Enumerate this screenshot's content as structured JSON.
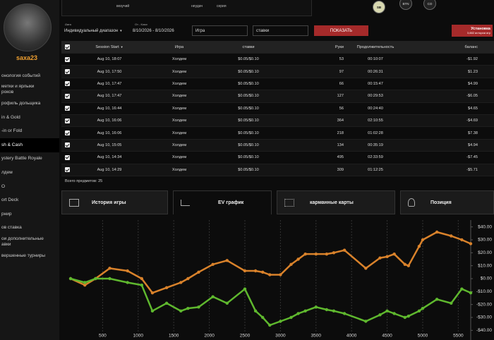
{
  "sidebar": {
    "username": "saxa23",
    "menu": [
      "онология событий",
      "метки и ярлыки\nроков",
      "рофиль дольщика",
      "in & Gold",
      "-in or Fold",
      "sh & Cash",
      "ystery Battle Royale",
      "лдем",
      "O",
      "ort Deck",
      "рнир",
      "ов ставка",
      "ои дополнительные\nавки",
      "вершенные турниры"
    ]
  },
  "top": {
    "labels": [
      "везучий",
      "неудач",
      "серия"
    ],
    "positions": [
      "SB",
      "BTN",
      "CO"
    ]
  },
  "filters": {
    "date_label": "Дата",
    "range_select": "Индивидуальный диапазон",
    "from_to_label": "От - Кому",
    "date_range": "8/10/2026 - 8/10/2026",
    "game_select": "Игра",
    "stakes_select": "ставки",
    "show_button": "ПОКАЗАТЬ",
    "install_button": "Установка",
    "install_sub": "3,882 истории игр"
  },
  "table": {
    "headers": [
      "Session Start",
      "Игра",
      "ставки",
      "Руки",
      "Продолжительность",
      "баланс"
    ],
    "rows": [
      [
        "Aug 10, 18:07",
        "Холдем",
        "$0.05/$0.10",
        "53",
        "00:10:07",
        "-$1.92"
      ],
      [
        "Aug 10, 17:50",
        "Холдем",
        "$0.05/$0.10",
        "97",
        "00:26:31",
        "$1.23"
      ],
      [
        "Aug 10, 17:47",
        "Холдем",
        "$0.05/$0.10",
        "66",
        "00:15:47",
        "$4.99"
      ],
      [
        "Aug 10, 17:47",
        "Холдем",
        "$0.05/$0.10",
        "127",
        "00:29:53",
        "-$6.05"
      ],
      [
        "Aug 10, 16:44",
        "Холдем",
        "$0.05/$0.10",
        "56",
        "00:24:40",
        "$4.65"
      ],
      [
        "Aug 10, 16:06",
        "Холдем",
        "$0.05/$0.10",
        "364",
        "02:10:55",
        "-$4.69"
      ],
      [
        "Aug 10, 16:06",
        "Холдем",
        "$0.05/$0.10",
        "218",
        "01:02:28",
        "$7.38"
      ],
      [
        "Aug 10, 15:05",
        "Холдем",
        "$0.05/$0.10",
        "134",
        "00:35:19",
        "$4.94"
      ],
      [
        "Aug 10, 14:34",
        "Холдем",
        "$0.05/$0.10",
        "495",
        "02:33:59",
        "-$7.45"
      ],
      [
        "Aug 10, 14:29",
        "Холдем",
        "$0.05/$0.10",
        "309",
        "01:12:25",
        "-$5.71"
      ]
    ],
    "total": "Всего предметов: 25"
  },
  "tabs": [
    "История игры",
    "EV график",
    "карманные карты",
    "Позиция"
  ],
  "chart_data": {
    "type": "line",
    "x": [
      50,
      250,
      400,
      600,
      850,
      1050,
      1200,
      1400,
      1600,
      1700,
      1850,
      2050,
      2250,
      2500,
      2650,
      2750,
      2850,
      3000,
      3150,
      3250,
      3350,
      3500,
      3650,
      3750,
      3900,
      4200,
      4400,
      4500,
      4600,
      4750,
      4800,
      4950,
      5000,
      5200,
      5400,
      5550,
      5675
    ],
    "series": [
      {
        "color": "#d9822b",
        "values": [
          0,
          -5,
          0,
          8,
          6,
          0,
          -11,
          -7,
          -3,
          0,
          5,
          11,
          14,
          6,
          6,
          5,
          3,
          3,
          11,
          15,
          19,
          19,
          19,
          20,
          22,
          8,
          16,
          17,
          19,
          11,
          10,
          25,
          30,
          36,
          33,
          30,
          27
        ]
      },
      {
        "color": "#5fb82e",
        "values": [
          0,
          -3,
          0,
          0,
          -3,
          -5,
          -25,
          -19,
          -25,
          -23,
          -22,
          -14,
          -19,
          -8,
          -25,
          -30,
          -36,
          -33,
          -30,
          -27,
          -25,
          -22,
          -24,
          -25,
          -27,
          -33,
          -28,
          -25,
          -27,
          -30,
          -29,
          -25,
          -23,
          -16,
          -19,
          -8,
          -11
        ]
      }
    ],
    "xlim": [
      0,
      5675
    ],
    "ylim": [
      -42,
      42
    ],
    "xticks": [
      500,
      1000,
      1500,
      2000,
      2500,
      3000,
      3500,
      4000,
      4500,
      5000,
      5500
    ],
    "yticks": [
      {
        "value": 40,
        "label": "$40.00"
      },
      {
        "value": 30,
        "label": "$30.00"
      },
      {
        "value": 20,
        "label": "$20.00"
      },
      {
        "value": 10,
        "label": "$10.00"
      },
      {
        "value": 0,
        "label": "$0.00"
      },
      {
        "value": -10,
        "label": "-$10.00"
      },
      {
        "value": -20,
        "label": "-$20.00"
      },
      {
        "value": -30,
        "label": "-$30.00"
      },
      {
        "value": -40,
        "label": "-$40.00"
      }
    ],
    "grid": true
  }
}
